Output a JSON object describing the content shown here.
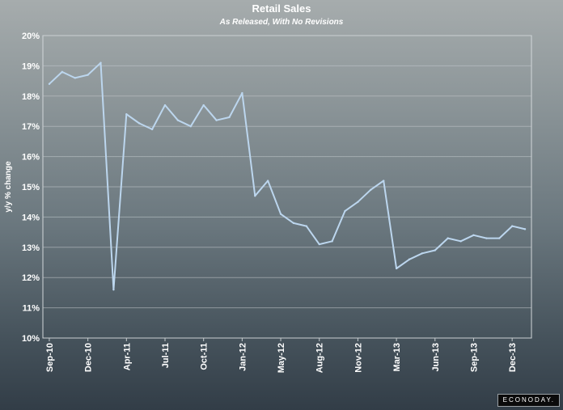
{
  "chart_data": {
    "type": "line",
    "title": "Retail Sales",
    "subtitle": "As Released, With No Revisions",
    "xlabel": "",
    "ylabel": "y/y % change",
    "ylim": [
      10,
      20
    ],
    "y_ticks": [
      "10%",
      "11%",
      "12%",
      "13%",
      "14%",
      "15%",
      "16%",
      "17%",
      "18%",
      "19%",
      "20%"
    ],
    "x_ticks": [
      "Sep-10",
      "Dec-10",
      "Apr-11",
      "Jul-11",
      "Oct-11",
      "Jan-12",
      "May-12",
      "Aug-12",
      "Nov-12",
      "Mar-13",
      "Jun-13",
      "Sep-13",
      "Dec-13"
    ],
    "x_tick_index": [
      0,
      3,
      6,
      9,
      12,
      15,
      18,
      21,
      24,
      27,
      30,
      33,
      36
    ],
    "grid": true,
    "colors": {
      "line": "#bcd6ee",
      "grid": "#c5cbce",
      "text": "#ffffff"
    },
    "series": [
      {
        "values": [
          18.4,
          18.8,
          18.6,
          18.7,
          19.1,
          11.6,
          17.4,
          17.1,
          16.9,
          17.7,
          17.2,
          17.0,
          17.7,
          17.2,
          17.3,
          18.1,
          14.7,
          15.2,
          14.1,
          13.8,
          13.7,
          13.1,
          13.2,
          14.2,
          14.5,
          14.9,
          15.2,
          12.3,
          12.6,
          12.8,
          12.9,
          13.3,
          13.2,
          13.4,
          13.3,
          13.3,
          13.7,
          13.6
        ]
      }
    ]
  },
  "branding": {
    "label": "ECONODAY."
  }
}
